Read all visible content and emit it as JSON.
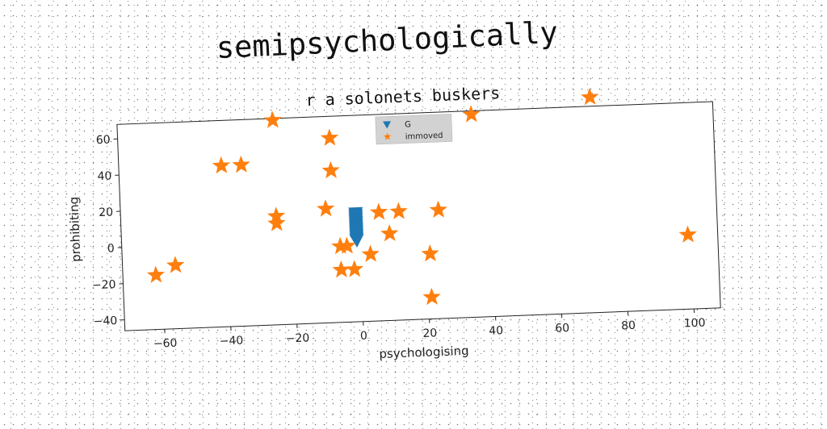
{
  "page_title": "semipsychologically",
  "chart_data": {
    "type": "scatter",
    "title": "r a solonets buskers",
    "xlabel": "psychologising",
    "ylabel": "prohibiting",
    "xlim": [
      -72,
      108
    ],
    "ylim": [
      -46,
      68
    ],
    "xticks": [
      -60,
      -40,
      -20,
      0,
      20,
      40,
      60,
      80,
      100
    ],
    "yticks": [
      -40,
      -20,
      0,
      20,
      40,
      60
    ],
    "grid": false,
    "legend_position": "top-center",
    "series": [
      {
        "name": "G",
        "marker": "triangle-down",
        "color": "#1f77b4",
        "points": [
          [
            -1,
            14
          ],
          [
            -1,
            13
          ],
          [
            -1,
            12
          ],
          [
            -1,
            11
          ],
          [
            -1,
            10
          ],
          [
            -1,
            9
          ],
          [
            -1,
            8
          ],
          [
            -1,
            7
          ],
          [
            -1,
            6
          ],
          [
            -1,
            5
          ],
          [
            -1,
            4
          ],
          [
            -1,
            3
          ],
          [
            -1,
            2
          ],
          [
            -1,
            1
          ],
          [
            -1,
            0
          ],
          [
            -1,
            -1
          ]
        ]
      },
      {
        "name": "immoved",
        "marker": "star",
        "color": "#ff7f0e",
        "points": [
          [
            -25,
            67
          ],
          [
            -8,
            56
          ],
          [
            -41,
            43
          ],
          [
            -35,
            43
          ],
          [
            -8,
            38
          ],
          [
            -10,
            17
          ],
          [
            -25,
            14
          ],
          [
            -25,
            10
          ],
          [
            6,
            14
          ],
          [
            12,
            14
          ],
          [
            24,
            14
          ],
          [
            9,
            2
          ],
          [
            -6,
            -4
          ],
          [
            -4,
            -4
          ],
          [
            3,
            -9
          ],
          [
            21,
            -10
          ],
          [
            -6,
            -17
          ],
          [
            -2,
            -17
          ],
          [
            21,
            -34
          ],
          [
            -62,
            -16
          ],
          [
            -56,
            -11
          ],
          [
            35,
            66
          ],
          [
            71,
            73
          ],
          [
            99,
            -5
          ]
        ]
      }
    ]
  }
}
